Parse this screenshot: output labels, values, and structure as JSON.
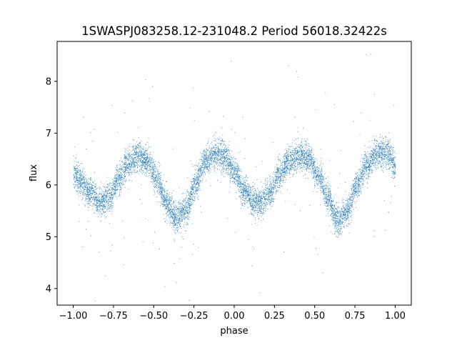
{
  "chart_data": {
    "type": "scatter",
    "title": "1SWASPJ083258.12-231048.2 Period 56018.32422s",
    "xlabel": "phase",
    "ylabel": "flux",
    "xlim": [
      -1.1,
      1.1
    ],
    "ylim": [
      3.68,
      8.77
    ],
    "x_ticks": [
      -1.0,
      -0.75,
      -0.5,
      -0.25,
      0.0,
      0.25,
      0.5,
      0.75,
      1.0
    ],
    "x_tick_labels": [
      "−1.00",
      "−0.75",
      "−0.50",
      "−0.25",
      "0.00",
      "0.25",
      "0.50",
      "0.75",
      "1.00"
    ],
    "y_ticks": [
      4,
      5,
      6,
      7,
      8
    ],
    "y_tick_labels": [
      "4",
      "5",
      "6",
      "7",
      "8"
    ],
    "grid": false,
    "legend": "none",
    "marker_color": "#1f77b4",
    "series": [
      {
        "phase_range": [
          -1.0,
          1.0
        ],
        "approx_points": 9000,
        "scatter_sigma": 0.14,
        "trend_x": [
          -1.0,
          -0.95,
          -0.9,
          -0.84,
          -0.78,
          -0.72,
          -0.66,
          -0.6,
          -0.54,
          -0.48,
          -0.42,
          -0.36,
          -0.3,
          -0.24,
          -0.18,
          -0.12,
          -0.06,
          0.0,
          0.06,
          0.12,
          0.16,
          0.22,
          0.28,
          0.34,
          0.4,
          0.46,
          0.52,
          0.58,
          0.64,
          0.7,
          0.76,
          0.82,
          0.88,
          0.94,
          1.0
        ],
        "trend_y": [
          6.25,
          6.05,
          5.85,
          5.65,
          5.78,
          6.1,
          6.42,
          6.58,
          6.45,
          6.1,
          5.65,
          5.35,
          5.55,
          6.05,
          6.45,
          6.63,
          6.55,
          6.25,
          5.9,
          5.68,
          5.65,
          5.85,
          6.2,
          6.48,
          6.58,
          6.5,
          6.2,
          5.75,
          5.3,
          5.5,
          6.0,
          6.4,
          6.6,
          6.62,
          6.4
        ]
      }
    ]
  }
}
